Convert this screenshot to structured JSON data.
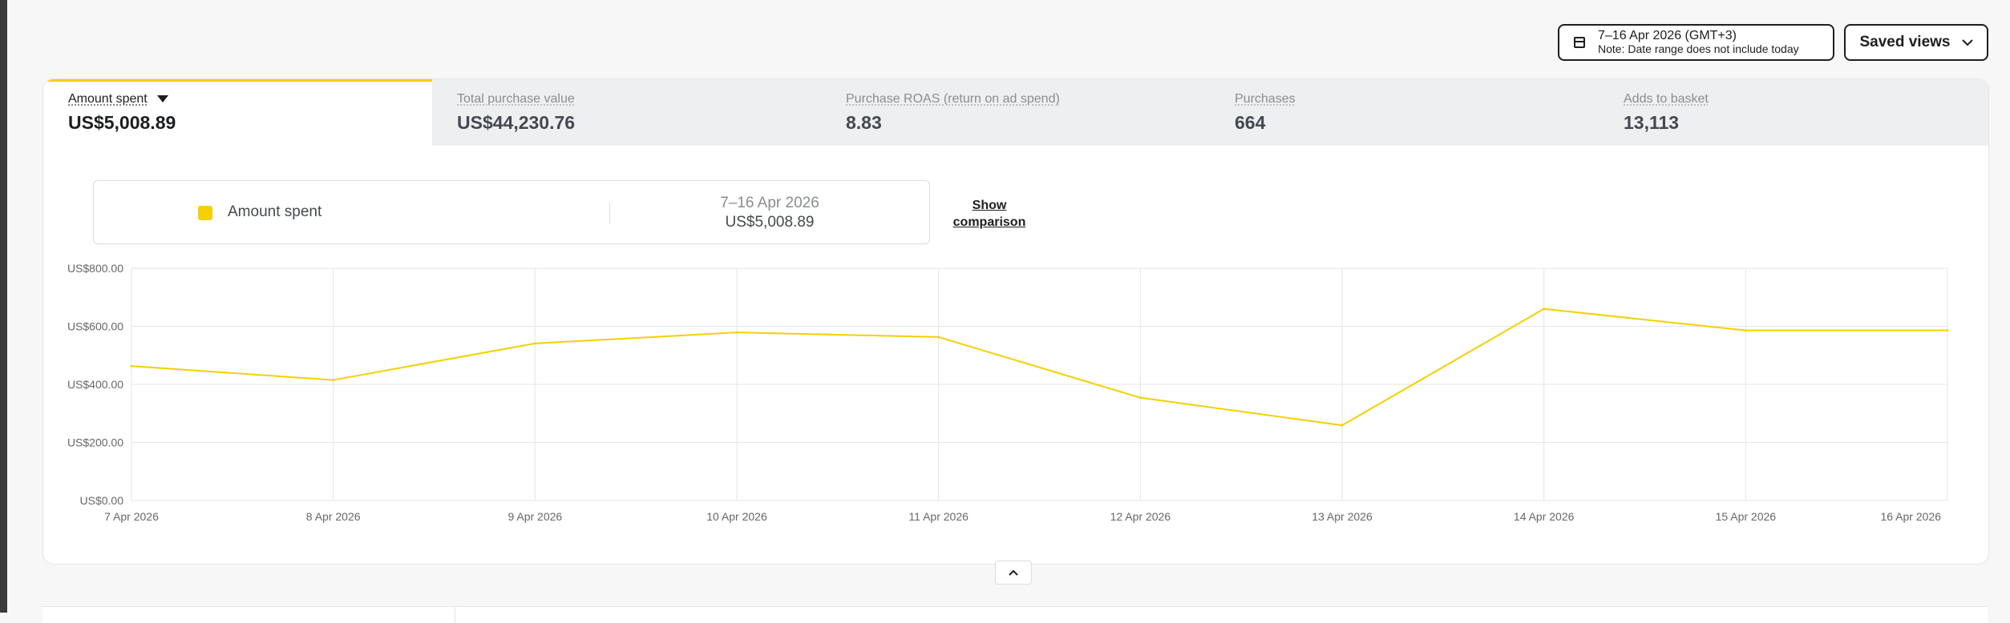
{
  "header": {
    "date_range": "7–16 Apr 2026 (GMT+3)",
    "date_note": "Note: Date range does not include today",
    "saved_views_label": "Saved views"
  },
  "metrics": [
    {
      "label": "Amount spent",
      "value": "US$5,008.89",
      "active": true
    },
    {
      "label": "Total purchase value",
      "value": "US$44,230.76",
      "active": false
    },
    {
      "label": "Purchase ROAS (return on ad spend)",
      "value": "8.83",
      "active": false
    },
    {
      "label": "Purchases",
      "value": "664",
      "active": false
    },
    {
      "label": "Adds to basket",
      "value": "13,113",
      "active": false
    }
  ],
  "summary": {
    "legend_label": "Amount spent",
    "period": "7–16 Apr 2026",
    "total": "US$5,008.89",
    "show_comparison": "Show comparison"
  },
  "colors": {
    "accent": "#f5d000",
    "grid": "#e6e6e6",
    "axis_text": "#65676b"
  },
  "chart_data": {
    "type": "line",
    "x": [
      "7 Apr 2026",
      "8 Apr 2026",
      "9 Apr 2026",
      "10 Apr 2026",
      "11 Apr 2026",
      "12 Apr 2026",
      "13 Apr 2026",
      "14 Apr 2026",
      "15 Apr 2026",
      "16 Apr 2026"
    ],
    "series": [
      {
        "name": "Amount spent",
        "values": [
          463,
          415,
          541,
          579,
          563,
          354,
          259,
          660,
          586,
          586
        ]
      }
    ],
    "ylim": [
      0,
      800
    ],
    "yticks": [
      "US$0.00",
      "US$200.00",
      "US$400.00",
      "US$600.00",
      "US$800.00"
    ],
    "ytick_values": [
      0,
      200,
      400,
      600,
      800
    ],
    "grid": true
  }
}
